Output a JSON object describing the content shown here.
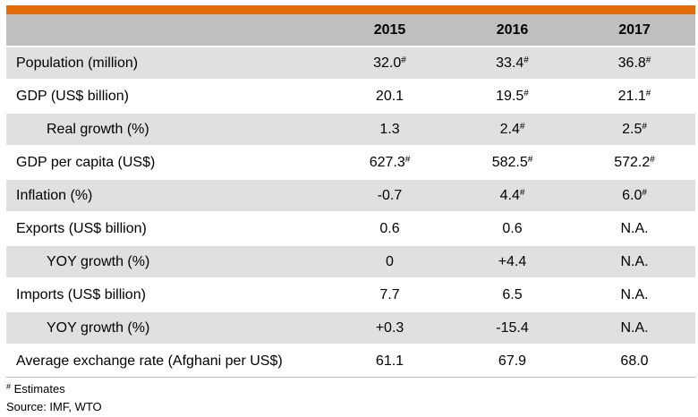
{
  "header": {
    "label_col": "",
    "years": [
      "2015",
      "2016",
      "2017"
    ]
  },
  "rows": [
    {
      "label": "Population (million)",
      "indent": false,
      "values": [
        {
          "v": "32.0",
          "e": "#"
        },
        {
          "v": "33.4",
          "e": "#"
        },
        {
          "v": "36.8",
          "e": "#"
        }
      ]
    },
    {
      "label": "GDP (US$ billion)",
      "indent": false,
      "values": [
        {
          "v": "20.1",
          "e": ""
        },
        {
          "v": "19.5",
          "e": "#"
        },
        {
          "v": "21.1",
          "e": "#"
        }
      ]
    },
    {
      "label": "Real growth (%)",
      "indent": true,
      "values": [
        {
          "v": "1.3",
          "e": ""
        },
        {
          "v": "2.4",
          "e": "#"
        },
        {
          "v": "2.5",
          "e": "#"
        }
      ]
    },
    {
      "label": "GDP per capita (US$)",
      "indent": false,
      "values": [
        {
          "v": "627.3",
          "e": "#"
        },
        {
          "v": "582.5",
          "e": "#"
        },
        {
          "v": "572.2",
          "e": "#"
        }
      ]
    },
    {
      "label": "Inflation (%)",
      "indent": false,
      "values": [
        {
          "v": "-0.7",
          "e": ""
        },
        {
          "v": "4.4",
          "e": "#"
        },
        {
          "v": "6.0",
          "e": "#"
        }
      ]
    },
    {
      "label": "Exports (US$ billion)",
      "indent": false,
      "values": [
        {
          "v": "0.6",
          "e": ""
        },
        {
          "v": "0.6",
          "e": ""
        },
        {
          "v": "N.A.",
          "e": ""
        }
      ]
    },
    {
      "label": "YOY growth (%)",
      "indent": true,
      "values": [
        {
          "v": "0",
          "e": ""
        },
        {
          "v": "+4.4",
          "e": ""
        },
        {
          "v": "N.A.",
          "e": ""
        }
      ]
    },
    {
      "label": "Imports (US$ billion)",
      "indent": false,
      "values": [
        {
          "v": "7.7",
          "e": ""
        },
        {
          "v": "6.5",
          "e": ""
        },
        {
          "v": "N.A.",
          "e": ""
        }
      ]
    },
    {
      "label": "YOY growth (%)",
      "indent": true,
      "values": [
        {
          "v": "+0.3",
          "e": ""
        },
        {
          "v": "-15.4",
          "e": ""
        },
        {
          "v": "N.A.",
          "e": ""
        }
      ]
    },
    {
      "label": "Average exchange rate (Afghani per US$)",
      "indent": false,
      "values": [
        {
          "v": "61.1",
          "e": ""
        },
        {
          "v": "67.9",
          "e": ""
        },
        {
          "v": "68.0",
          "e": ""
        }
      ]
    }
  ],
  "notes": {
    "estimate_mark": "#",
    "estimate_text": " Estimates",
    "source": "Source: IMF, WTO"
  },
  "colors": {
    "accent_bar": "#e36c0a",
    "header_bg": "#bfbfbf",
    "shade_bg": "#e0e0e0"
  }
}
